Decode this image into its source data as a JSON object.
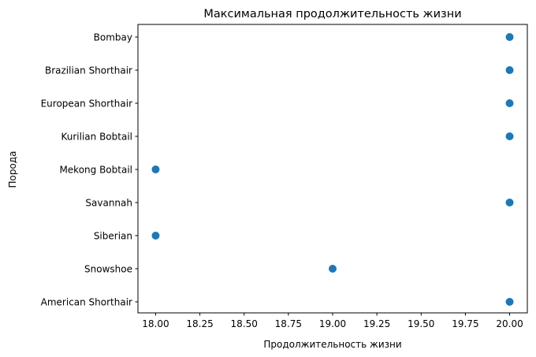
{
  "chart_data": {
    "type": "scatter",
    "title": "Максимальная продолжительность жизни",
    "xlabel": "Продолжительность жизни",
    "ylabel": "Порода",
    "xlim": [
      17.9,
      20.1
    ],
    "xticks": [
      "18.00",
      "18.25",
      "18.50",
      "18.75",
      "19.00",
      "19.25",
      "19.50",
      "19.75",
      "20.00"
    ],
    "categories": [
      "Bombay",
      "Brazilian Shorthair",
      "European Shorthair",
      "Kurilian Bobtail",
      "Mekong Bobtail",
      "Savannah",
      "Siberian",
      "Snowshoe",
      "American Shorthair"
    ],
    "series": [
      {
        "values": [
          20,
          20,
          20,
          20,
          18,
          20,
          18,
          19,
          20
        ]
      }
    ],
    "marker_color": "#1f77b4",
    "grid": false,
    "legend": false
  }
}
